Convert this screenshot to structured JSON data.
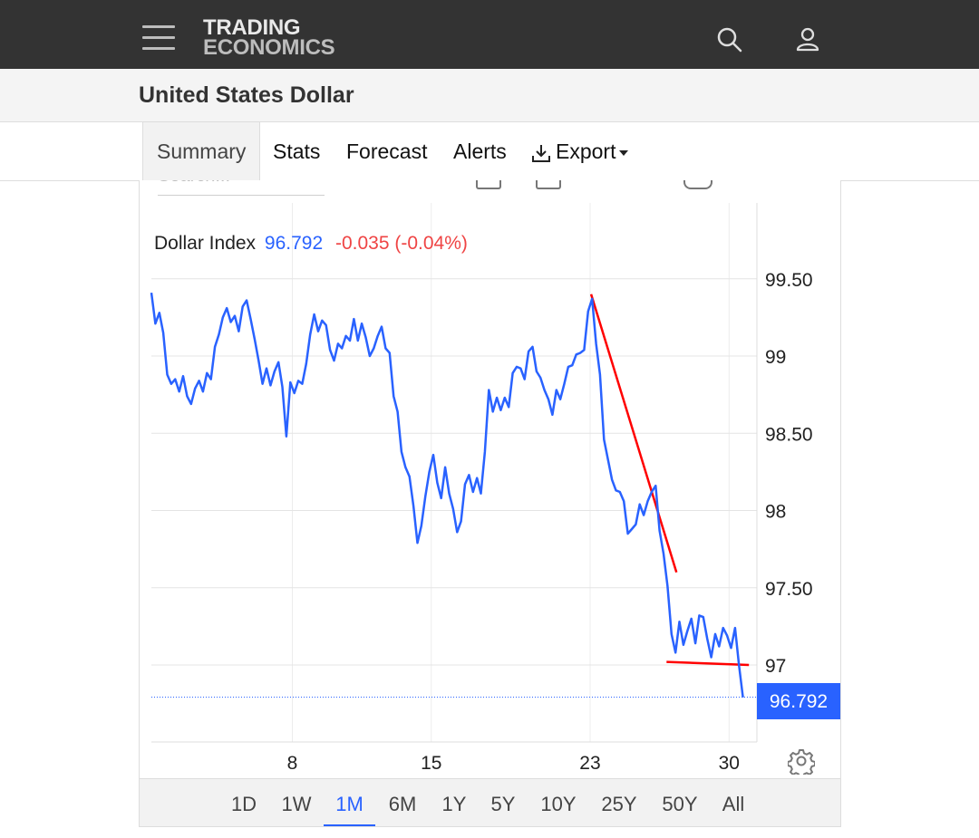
{
  "header": {
    "logo_line1": "TRADING",
    "logo_line2": "ECONOMICS",
    "menu_icon": "hamburger-menu-icon",
    "search_icon": "search-icon",
    "user_icon": "user-icon"
  },
  "page_title": "United States Dollar",
  "tabs": [
    {
      "label": "Summary",
      "active": true
    },
    {
      "label": "Stats"
    },
    {
      "label": "Forecast"
    },
    {
      "label": "Alerts"
    },
    {
      "label": "Export",
      "icon": "download-icon"
    }
  ],
  "chart_search_placeholder": "Search...",
  "quote": {
    "name": "Dollar Index",
    "price": "96.792",
    "change": "-0.035 (-0.04%)",
    "price_color": "#2962ff",
    "change_color": "#ef4444"
  },
  "last_price_label": "96.792",
  "range_buttons": [
    "1D",
    "1W",
    "1M",
    "6M",
    "1Y",
    "5Y",
    "10Y",
    "25Y",
    "50Y",
    "All"
  ],
  "active_range": "1M",
  "settings_icon": "gear-icon",
  "chart_data": {
    "type": "line",
    "series": [
      {
        "name": "Dollar Index",
        "color": "#2962ff",
        "points": [
          [
            0.9,
            99.41
          ],
          [
            1.1,
            99.21
          ],
          [
            1.3,
            99.28
          ],
          [
            1.5,
            99.15
          ],
          [
            1.7,
            98.88
          ],
          [
            1.9,
            98.82
          ],
          [
            2.1,
            98.85
          ],
          [
            2.3,
            98.77
          ],
          [
            2.5,
            98.87
          ],
          [
            2.7,
            98.74
          ],
          [
            2.9,
            98.69
          ],
          [
            3.1,
            98.79
          ],
          [
            3.3,
            98.84
          ],
          [
            3.5,
            98.77
          ],
          [
            3.7,
            98.89
          ],
          [
            3.9,
            98.85
          ],
          [
            4.1,
            99.06
          ],
          [
            4.3,
            99.14
          ],
          [
            4.5,
            99.25
          ],
          [
            4.7,
            99.31
          ],
          [
            4.9,
            99.22
          ],
          [
            5.1,
            99.26
          ],
          [
            5.3,
            99.16
          ],
          [
            5.5,
            99.32
          ],
          [
            5.7,
            99.36
          ],
          [
            5.9,
            99.24
          ],
          [
            6.1,
            99.11
          ],
          [
            6.3,
            98.97
          ],
          [
            6.5,
            98.82
          ],
          [
            6.7,
            98.92
          ],
          [
            6.9,
            98.81
          ],
          [
            7.1,
            98.9
          ],
          [
            7.3,
            98.96
          ],
          [
            7.5,
            98.8
          ],
          [
            7.7,
            98.48
          ],
          [
            7.9,
            98.83
          ],
          [
            8.1,
            98.76
          ],
          [
            8.3,
            98.84
          ],
          [
            8.5,
            98.82
          ],
          [
            8.7,
            98.95
          ],
          [
            8.9,
            99.14
          ],
          [
            9.1,
            99.27
          ],
          [
            9.3,
            99.16
          ],
          [
            9.5,
            99.23
          ],
          [
            9.7,
            99.2
          ],
          [
            9.9,
            99.04
          ],
          [
            10.1,
            98.97
          ],
          [
            10.3,
            99.08
          ],
          [
            10.5,
            99.05
          ],
          [
            10.7,
            99.13
          ],
          [
            10.9,
            99.1
          ],
          [
            11.1,
            99.24
          ],
          [
            11.3,
            99.1
          ],
          [
            11.5,
            99.21
          ],
          [
            11.7,
            99.12
          ],
          [
            11.9,
            99.0
          ],
          [
            12.1,
            99.05
          ],
          [
            12.3,
            99.13
          ],
          [
            12.5,
            99.19
          ],
          [
            12.7,
            99.05
          ],
          [
            12.9,
            99.02
          ],
          [
            13.1,
            98.74
          ],
          [
            13.3,
            98.64
          ],
          [
            13.5,
            98.38
          ],
          [
            13.7,
            98.28
          ],
          [
            13.9,
            98.22
          ],
          [
            14.1,
            98.03
          ],
          [
            14.3,
            97.79
          ],
          [
            14.5,
            97.9
          ],
          [
            14.7,
            98.09
          ],
          [
            14.9,
            98.25
          ],
          [
            15.1,
            98.36
          ],
          [
            15.3,
            98.18
          ],
          [
            15.5,
            98.08
          ],
          [
            15.7,
            98.28
          ],
          [
            15.9,
            98.11
          ],
          [
            16.1,
            98.01
          ],
          [
            16.3,
            97.86
          ],
          [
            16.5,
            97.93
          ],
          [
            16.7,
            98.17
          ],
          [
            16.9,
            98.23
          ],
          [
            17.1,
            98.12
          ],
          [
            17.3,
            98.21
          ],
          [
            17.5,
            98.11
          ],
          [
            17.7,
            98.38
          ],
          [
            17.9,
            98.78
          ],
          [
            18.1,
            98.64
          ],
          [
            18.3,
            98.73
          ],
          [
            18.5,
            98.65
          ],
          [
            18.7,
            98.73
          ],
          [
            18.9,
            98.67
          ],
          [
            19.1,
            98.89
          ],
          [
            19.3,
            98.93
          ],
          [
            19.5,
            98.92
          ],
          [
            19.7,
            98.85
          ],
          [
            19.9,
            99.03
          ],
          [
            20.1,
            99.06
          ],
          [
            20.3,
            98.9
          ],
          [
            20.5,
            98.86
          ],
          [
            20.7,
            98.78
          ],
          [
            20.9,
            98.72
          ],
          [
            21.1,
            98.62
          ],
          [
            21.3,
            98.78
          ],
          [
            21.5,
            98.72
          ],
          [
            21.7,
            98.82
          ],
          [
            21.9,
            98.93
          ],
          [
            22.1,
            98.94
          ],
          [
            22.3,
            99.01
          ],
          [
            22.5,
            99.02
          ],
          [
            22.7,
            99.04
          ],
          [
            22.9,
            99.29
          ],
          [
            23.1,
            99.37
          ],
          [
            23.3,
            99.08
          ],
          [
            23.5,
            98.88
          ],
          [
            23.7,
            98.46
          ],
          [
            23.9,
            98.33
          ],
          [
            24.1,
            98.2
          ],
          [
            24.3,
            98.13
          ],
          [
            24.5,
            98.12
          ],
          [
            24.7,
            98.06
          ],
          [
            24.9,
            97.85
          ],
          [
            25.1,
            97.88
          ],
          [
            25.3,
            97.91
          ],
          [
            25.5,
            98.04
          ],
          [
            25.7,
            97.97
          ],
          [
            25.9,
            98.06
          ],
          [
            26.1,
            98.12
          ],
          [
            26.3,
            98.16
          ],
          [
            26.5,
            97.87
          ],
          [
            26.7,
            97.72
          ],
          [
            26.9,
            97.51
          ],
          [
            27.1,
            97.2
          ],
          [
            27.3,
            97.08
          ],
          [
            27.5,
            97.28
          ],
          [
            27.7,
            97.13
          ],
          [
            27.9,
            97.22
          ],
          [
            28.1,
            97.3
          ],
          [
            28.3,
            97.14
          ],
          [
            28.5,
            97.32
          ],
          [
            28.7,
            97.31
          ],
          [
            28.9,
            97.17
          ],
          [
            29.1,
            97.05
          ],
          [
            29.3,
            97.2
          ],
          [
            29.5,
            97.12
          ],
          [
            29.7,
            97.24
          ],
          [
            29.9,
            97.19
          ],
          [
            30.1,
            97.11
          ],
          [
            30.3,
            97.24
          ],
          [
            30.5,
            97.0
          ],
          [
            30.7,
            96.79
          ]
        ]
      }
    ],
    "trendlines": [
      {
        "color": "#ff0000",
        "from": [
          23.05,
          99.4
        ],
        "to": [
          27.35,
          97.6
        ]
      },
      {
        "color": "#ff0000",
        "from": [
          26.85,
          97.02
        ],
        "to": [
          31.0,
          97.0
        ]
      }
    ],
    "last_value": 96.792,
    "x_ticks": [
      "8",
      "15",
      "23",
      "30"
    ],
    "x_tick_values": [
      8,
      15,
      23,
      30
    ],
    "y_ticks": [
      "97",
      "97.50",
      "98",
      "98.50",
      "99",
      "99.50"
    ],
    "y_tick_values": [
      97,
      97.5,
      98,
      98.5,
      99,
      99.5
    ],
    "xlim": [
      0.9,
      31.5
    ],
    "ylim": [
      96.5,
      100.0
    ],
    "grid": true
  }
}
